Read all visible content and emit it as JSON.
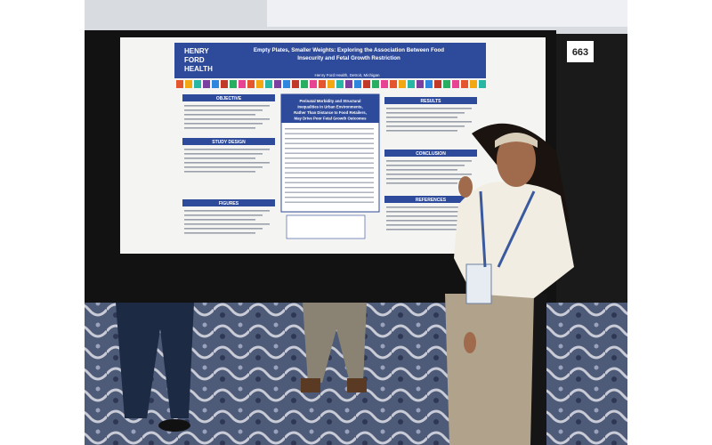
{
  "board_number": "663",
  "poster": {
    "logo": [
      "HENRY",
      "FORD",
      "HEALTH"
    ],
    "title": [
      "Empty Plates, Smaller Weights: Exploring the Association Between Food",
      "Insecurity and Fetal Growth Restriction"
    ],
    "affiliation": "Henry Ford Health, Detroit, Michigan",
    "left_sections": [
      "OBJECTIVE",
      "STUDY DESIGN",
      "FIGURES"
    ],
    "highlight": [
      "Perinatal Morbidity and Structural",
      "Inequalities in Urban Environments,",
      "Rather Than Distance to Food Retailers,",
      "May Drive Poor Fetal Growth Outcomes"
    ],
    "right_sections": [
      "RESULTS",
      "CONCLUSION",
      "REFERENCES"
    ]
  }
}
